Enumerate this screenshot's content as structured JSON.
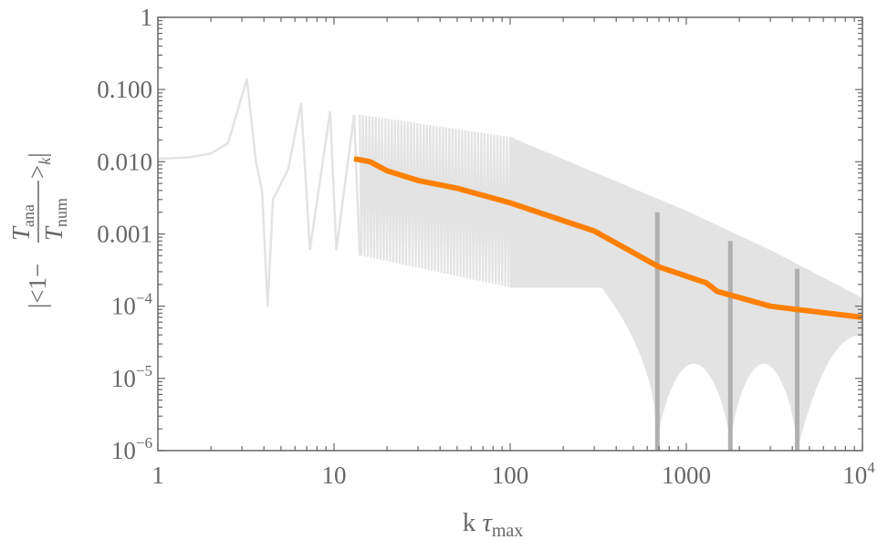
{
  "chart_data": {
    "type": "line",
    "title": "",
    "xlabel": "k τ_max",
    "ylabel": "|<1 - T_ana / T_num >_k|",
    "xscale": "log",
    "yscale": "log",
    "xlim": [
      1,
      10000
    ],
    "ylim": [
      1e-06,
      1
    ],
    "grid": false,
    "legend": null,
    "x_tick_labels": [
      "1",
      "10",
      "100",
      "1000",
      "10^4"
    ],
    "y_tick_labels": [
      "1",
      "0.100",
      "0.010",
      "0.001",
      "10^-4",
      "10^-5",
      "10^-6"
    ],
    "series": [
      {
        "name": "oscillating residual (light gray)",
        "color": "#e3e3e3",
        "style": "thin oscillating line densifying into filled band",
        "points": [
          [
            1,
            0.011
          ],
          [
            1.5,
            0.0115
          ],
          [
            2,
            0.013
          ],
          [
            2.5,
            0.018
          ],
          [
            3.2,
            0.14
          ],
          [
            3.6,
            0.01
          ],
          [
            3.9,
            0.004
          ],
          [
            4.2,
            0.0001
          ],
          [
            4.5,
            0.003
          ],
          [
            5.5,
            0.008
          ],
          [
            6.5,
            0.065
          ],
          [
            7.3,
            0.0006
          ],
          [
            9.5,
            0.05
          ],
          [
            10.3,
            0.0006
          ],
          [
            13,
            0.045
          ],
          [
            14,
            0.0005
          ],
          [
            100,
            0.022
          ],
          [
            1000,
            0.0021
          ],
          [
            3000,
            0.0006
          ],
          [
            10000,
            0.00013
          ]
        ],
        "band_lower": [
          [
            100,
            0.00018
          ],
          [
            330,
            0.00018
          ],
          [
            685,
            1e-06
          ],
          [
            1200,
            1.6e-05
          ],
          [
            1780,
            1e-06
          ],
          [
            2900,
            1.6e-05
          ],
          [
            4260,
            1e-06
          ],
          [
            10000,
            4e-05
          ]
        ]
      },
      {
        "name": "averaged residual (orange)",
        "color": "#ff8000",
        "points": [
          [
            13,
            0.011
          ],
          [
            16,
            0.01
          ],
          [
            20,
            0.0075
          ],
          [
            30,
            0.0055
          ],
          [
            50,
            0.0043
          ],
          [
            100,
            0.0027
          ],
          [
            300,
            0.0011
          ],
          [
            700,
            0.00035
          ],
          [
            1300,
            0.00021
          ],
          [
            1500,
            0.00016
          ],
          [
            3000,
            0.0001
          ],
          [
            4260,
            9e-05
          ],
          [
            10000,
            7e-05
          ]
        ]
      }
    ],
    "vertical_markers": {
      "color": "#b0b0b0",
      "x": [
        685,
        1780,
        4260
      ],
      "top_values": [
        0.002,
        0.0008,
        0.00033
      ]
    }
  }
}
